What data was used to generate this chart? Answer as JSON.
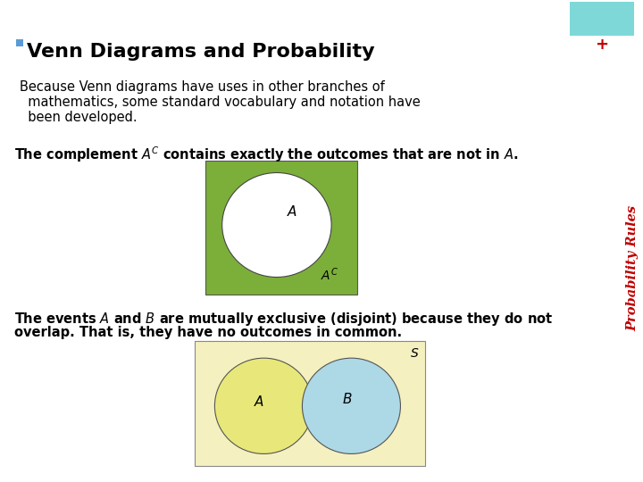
{
  "title": "Venn Diagrams and Probability",
  "title_bullet_color": "#5B9BD5",
  "title_fontsize": 16,
  "background_color": "#FFFFFF",
  "body_text1_line1": "Because Venn diagrams have uses in other branches of",
  "body_text1_line2": "  mathematics, some standard vocabulary and notation have",
  "body_text1_line3": "  been developed.",
  "body_text1_fontsize": 10.5,
  "complement_text": "The complement $\\mathit{A}^C$ contains exactly the outcomes that are not in $\\mathit{A}$.",
  "complement_fontsize": 10.5,
  "disjoint_line1": "The events $\\mathit{A}$ and $\\mathit{B}$ are mutually exclusive (disjoint) because they do not",
  "disjoint_line2": "overlap. That is, they have no outcomes in common.",
  "disjoint_fontsize": 10.5,
  "sidebar_color": "#7ED8D8",
  "sidebar_text": "Probability Rules",
  "sidebar_text_color": "#C00000",
  "sidebar_plus": "+",
  "venn1_bg_color": "#7CAF3A",
  "venn1_circle_color": "#FFFFFF",
  "venn2_bg_color": "#F5F0C0",
  "venn2_circle_A_color": "#E8E87A",
  "venn2_circle_B_color": "#ADD8E6"
}
